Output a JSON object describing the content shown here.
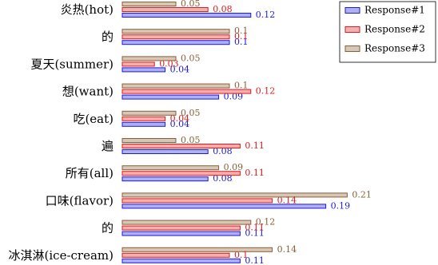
{
  "chart_data": {
    "type": "hbar",
    "categories": [
      "炎热(hot)",
      "的",
      "夏天(summer)",
      "想(want)",
      "吃(eat)",
      "遍",
      "所有(all)",
      "口味(flavor)",
      "的",
      "冰淇淋(ice-cream)"
    ],
    "series": [
      {
        "name": "Response#1",
        "color": "#1a1ae0",
        "values": [
          0.12,
          0.1,
          0.04,
          0.09,
          0.04,
          0.08,
          0.08,
          0.19,
          0.11,
          0.11
        ]
      },
      {
        "name": "Response#2",
        "color": "#e01a1a",
        "values": [
          0.08,
          0.1,
          0.03,
          0.12,
          0.04,
          0.11,
          0.11,
          0.14,
          0.11,
          0.1
        ]
      },
      {
        "name": "Response#3",
        "color": "#8b5e34",
        "values": [
          0.05,
          0.1,
          0.05,
          0.1,
          0.05,
          0.05,
          0.09,
          0.21,
          0.12,
          0.14
        ]
      }
    ],
    "legend": "upper right"
  }
}
